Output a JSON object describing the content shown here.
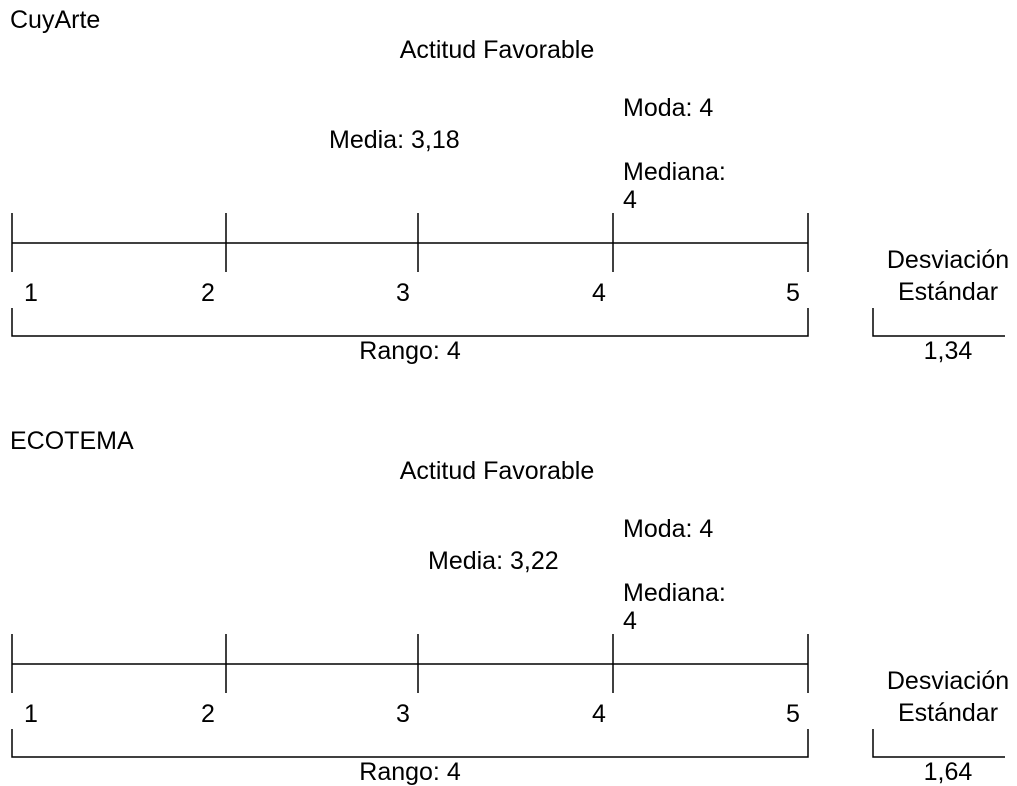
{
  "panels": [
    {
      "title": "CuyArte",
      "scale_title": "Actitud Favorable",
      "moda": "Moda: 4",
      "media": "Media: 3,18",
      "mediana_label": "Mediana:",
      "mediana_value": "4",
      "scale_ticks": [
        "1",
        "2",
        "3",
        "4",
        "5"
      ],
      "range": "Rango: 4",
      "std_dev_label": [
        "Desviación",
        "Estándar"
      ],
      "std_dev_value": "1,34"
    },
    {
      "title": "ECOTEMA",
      "scale_title": "Actitud Favorable",
      "moda": "Moda: 4",
      "media": "Media: 3,22",
      "mediana_label": "Mediana:",
      "mediana_value": "4",
      "scale_ticks": [
        "1",
        "2",
        "3",
        "4",
        "5"
      ],
      "range": "Rango: 4",
      "std_dev_label": [
        "Desviación",
        "Estándar"
      ],
      "std_dev_value": "1,64"
    }
  ]
}
